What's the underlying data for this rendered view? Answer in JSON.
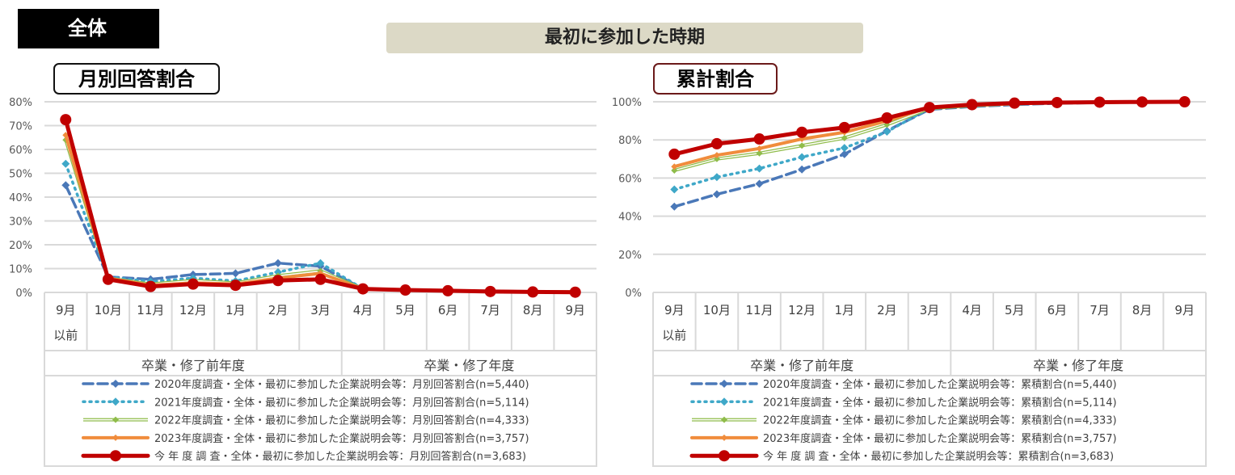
{
  "header": {
    "tag": "全体",
    "title": "最初に参加した時期"
  },
  "chart_data": [
    {
      "type": "line",
      "title": "月別回答割合",
      "ylim": [
        0,
        80
      ],
      "yticks": [
        "0%",
        "10%",
        "20%",
        "30%",
        "40%",
        "50%",
        "60%",
        "70%",
        "80%"
      ],
      "categories": [
        "9月",
        "10月",
        "11月",
        "12月",
        "1月",
        "2月",
        "3月",
        "4月",
        "5月",
        "6月",
        "7月",
        "8月",
        "9月"
      ],
      "category_sub": [
        "以前",
        "",
        "",
        "",
        "",
        "",
        "",
        "",
        "",
        "",
        "",
        "",
        ""
      ],
      "groups": [
        "卒業・修了前年度",
        "卒業・修了年度"
      ],
      "series": [
        {
          "name": "2020年度調査・全体・最初に参加した企業説明会等：月別回答割合(n=5,440)",
          "color": "#4a78b8",
          "style": "dash",
          "values": [
            45,
            6.5,
            5.5,
            7.5,
            8,
            12.3,
            11,
            1.5,
            1,
            0.7,
            0.4,
            0.3,
            0.2
          ]
        },
        {
          "name": "2021年度調査・全体・最初に参加した企業説明会等：月別回答割合(n=5,114)",
          "color": "#3fa8c8",
          "style": "dot",
          "values": [
            54,
            6.5,
            4.5,
            6,
            4.8,
            8.5,
            12.3,
            1.5,
            1,
            0.7,
            0.4,
            0.3,
            0.2
          ]
        },
        {
          "name": "2022年度調査・全体・最初に参加した企業説明会等：月別回答割合(n=4,333)",
          "color": "#8fbc4a",
          "style": "double",
          "values": [
            64,
            6,
            3.5,
            5,
            4,
            7,
            9,
            1.5,
            1,
            0.7,
            0.4,
            0.3,
            0.2
          ]
        },
        {
          "name": "2023年度調査・全体・最初に参加した企業説明会等：月別回答割合(n=3,757)",
          "color": "#f08c3c",
          "style": "solid",
          "values": [
            66,
            6,
            3,
            4,
            3.5,
            6,
            8,
            1.5,
            1,
            0.7,
            0.4,
            0.3,
            0.2
          ]
        },
        {
          "name": "今 年 度 調 査・全体・最初に参加した企業説明会等：月別回答割合(n=3,683)",
          "color": "#c00000",
          "style": "bold",
          "values": [
            72.5,
            5.5,
            2.5,
            3.5,
            3,
            5,
            5.5,
            1.5,
            1,
            0.7,
            0.4,
            0.2,
            0.1
          ]
        }
      ]
    },
    {
      "type": "line",
      "title": "累計割合",
      "ylim": [
        0,
        100
      ],
      "yticks": [
        "0%",
        "20%",
        "40%",
        "60%",
        "80%",
        "100%"
      ],
      "categories": [
        "9月",
        "10月",
        "11月",
        "12月",
        "1月",
        "2月",
        "3月",
        "4月",
        "5月",
        "6月",
        "7月",
        "8月",
        "9月"
      ],
      "category_sub": [
        "以前",
        "",
        "",
        "",
        "",
        "",
        "",
        "",
        "",
        "",
        "",
        "",
        ""
      ],
      "groups": [
        "卒業・修了前年度",
        "卒業・修了年度"
      ],
      "series": [
        {
          "name": "2020年度調査・全体・最初に参加した企業説明会等：累積割合(n=5,440)",
          "color": "#4a78b8",
          "style": "dash",
          "values": [
            45,
            51.5,
            57,
            64.5,
            72.5,
            84.8,
            96,
            97.5,
            98.5,
            99.2,
            99.6,
            99.9,
            100
          ]
        },
        {
          "name": "2021年度調査・全体・最初に参加した企業説明会等：累積割合(n=5,114)",
          "color": "#3fa8c8",
          "style": "dot",
          "values": [
            54,
            60.5,
            65,
            71,
            75.8,
            84.3,
            96.6,
            98.1,
            99.1,
            99.5,
            99.7,
            99.9,
            100
          ]
        },
        {
          "name": "2022年度調査・全体・最初に参加した企業説明会等：累積割合(n=4,333)",
          "color": "#8fbc4a",
          "style": "double",
          "values": [
            64,
            70,
            73,
            77,
            81,
            88,
            96.5,
            98,
            99,
            99.5,
            99.7,
            99.9,
            100
          ]
        },
        {
          "name": "2023年度調査・全体・最初に参加した企業説明会等：累積割合(n=3,757)",
          "color": "#f08c3c",
          "style": "solid",
          "values": [
            66,
            72,
            75.5,
            80.5,
            84,
            90,
            97,
            98.2,
            99,
            99.5,
            99.7,
            99.9,
            100
          ]
        },
        {
          "name": "今 年 度 調 査・全体・最初に参加した企業説明会等：累積割合(n=3,683)",
          "color": "#c00000",
          "style": "bold",
          "values": [
            72.5,
            78,
            80.5,
            84,
            86.5,
            91.5,
            97,
            98.5,
            99.3,
            99.6,
            99.8,
            99.9,
            100
          ]
        }
      ]
    }
  ]
}
